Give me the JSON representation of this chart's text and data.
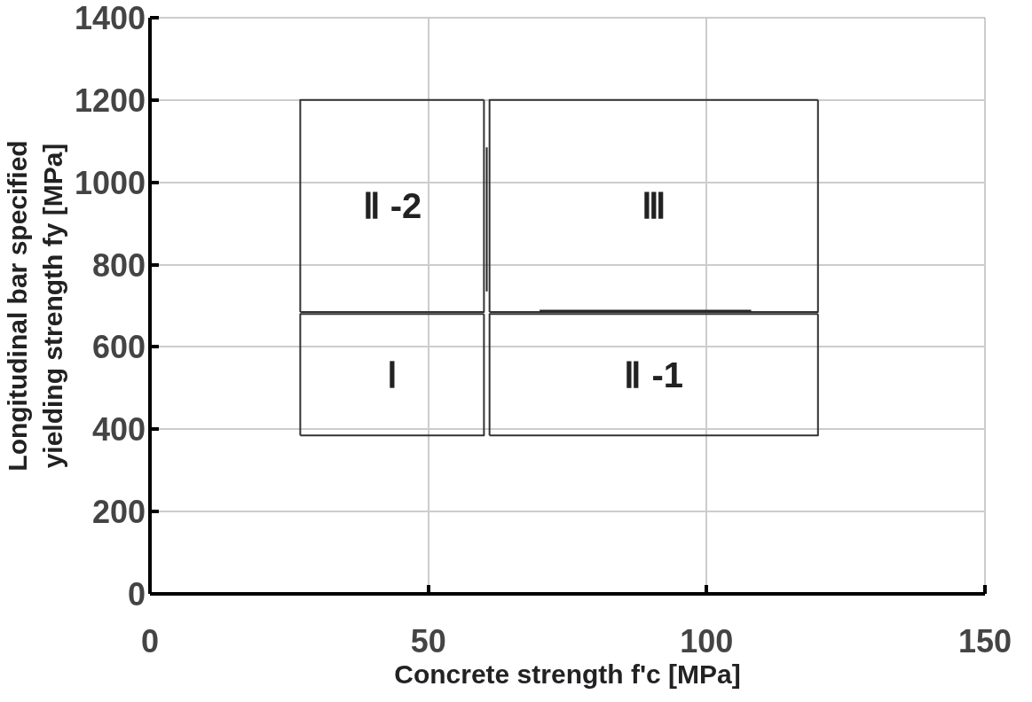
{
  "chart_data": {
    "type": "line",
    "xlabel": "Concrete strength f'c [MPa]",
    "ylabel": "Longitudinal bar specified\nyielding strength fy [MPa]",
    "xlim": [
      0,
      150
    ],
    "ylim": [
      0,
      1400
    ],
    "xticks": [
      0,
      50,
      100,
      150
    ],
    "yticks": [
      0,
      200,
      400,
      600,
      800,
      1000,
      1200,
      1400
    ],
    "grid": true,
    "series": [
      {
        "color": "#333333",
        "x": [
          27,
          27,
          60
        ],
        "values": [
          385,
          680,
          680
        ]
      },
      {
        "color": "#333333",
        "x": [
          27,
          60,
          60
        ],
        "values": [
          385,
          385,
          680
        ]
      },
      {
        "color": "#333333",
        "x": [
          27,
          27,
          60
        ],
        "values": [
          685,
          1200,
          1200
        ]
      },
      {
        "color": "#333333",
        "x": [
          27,
          60,
          60
        ],
        "values": [
          685,
          685,
          1200
        ]
      },
      {
        "color": "#333333",
        "x": [
          61,
          61,
          120
        ],
        "values": [
          685,
          1200,
          1200
        ]
      },
      {
        "color": "#333333",
        "x": [
          61,
          120,
          120
        ],
        "values": [
          685,
          685,
          1200
        ]
      },
      {
        "color": "#333333",
        "x": [
          61,
          61,
          120
        ],
        "values": [
          385,
          680,
          680
        ]
      },
      {
        "color": "#333333",
        "x": [
          61,
          120,
          120
        ],
        "values": [
          385,
          385,
          680
        ]
      },
      {
        "color": "#222222",
        "x": [
          60.5,
          60.5
        ],
        "values": [
          735,
          1085
        ]
      },
      {
        "color": "#222222",
        "x": [
          70,
          108
        ],
        "values": [
          688,
          688
        ]
      }
    ],
    "annotations": [
      "Ⅰ",
      "Ⅱ -2",
      "Ⅲ",
      "Ⅱ -1"
    ]
  }
}
